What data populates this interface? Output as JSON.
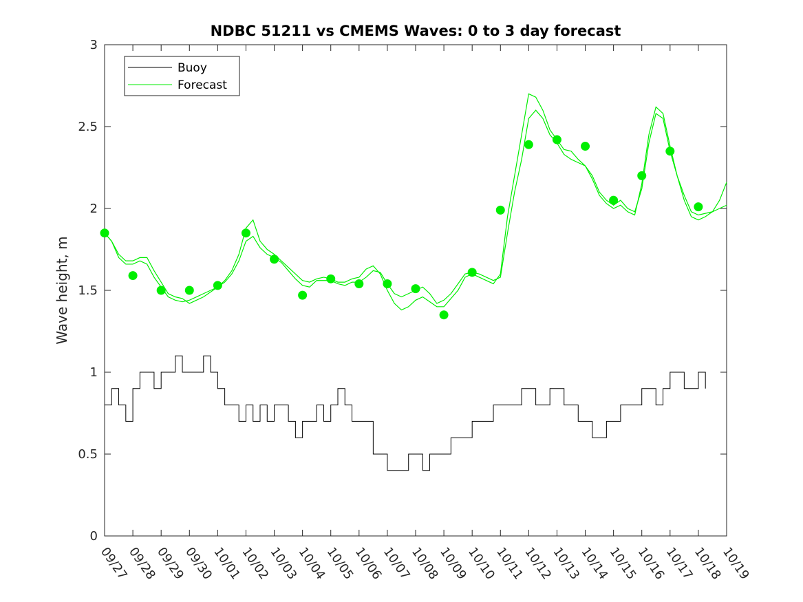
{
  "colors": {
    "buoy": "#000000",
    "forecast": "#00ee00",
    "axes": "#262626"
  },
  "chart_data": {
    "type": "line",
    "title": "NDBC 51211 vs CMEMS Waves: 0 to 3 day forecast",
    "xlabel": "",
    "ylabel": "Wave height, m",
    "xlim": [
      "09/27",
      "10/19"
    ],
    "ylim": [
      0,
      3
    ],
    "yticks": [
      0,
      0.5,
      1,
      1.5,
      2,
      2.5,
      3
    ],
    "ytick_labels": [
      "0",
      "0.5",
      "1",
      "1.5",
      "2",
      "2.5",
      "3"
    ],
    "xticks": [
      "09/27",
      "09/28",
      "09/29",
      "09/30",
      "10/01",
      "10/02",
      "10/03",
      "10/04",
      "10/05",
      "10/06",
      "10/07",
      "10/08",
      "10/09",
      "10/10",
      "10/11",
      "10/12",
      "10/13",
      "10/14",
      "10/15",
      "10/16",
      "10/17",
      "10/18",
      "10/19"
    ],
    "grid": false,
    "legend": {
      "placement": "top-left",
      "entries": [
        "Buoy",
        "Forecast"
      ]
    },
    "series": [
      {
        "name": "Buoy",
        "style": "line",
        "x": [
          "09/27",
          "09/27 06:00",
          "09/27 12:00",
          "09/27 18:00",
          "09/28",
          "09/28 06:00",
          "09/28 12:00",
          "09/28 18:00",
          "09/29",
          "09/29 06:00",
          "09/29 12:00",
          "09/29 18:00",
          "09/30",
          "09/30 06:00",
          "09/30 12:00",
          "09/30 18:00",
          "10/01",
          "10/01 06:00",
          "10/01 12:00",
          "10/01 18:00",
          "10/02",
          "10/02 06:00",
          "10/02 12:00",
          "10/02 18:00",
          "10/03",
          "10/03 06:00",
          "10/03 12:00",
          "10/03 18:00",
          "10/04",
          "10/04 06:00",
          "10/04 12:00",
          "10/04 18:00",
          "10/05",
          "10/05 06:00",
          "10/05 12:00",
          "10/05 18:00",
          "10/06",
          "10/06 06:00",
          "10/06 12:00",
          "10/06 18:00",
          "10/07",
          "10/07 06:00",
          "10/07 12:00",
          "10/07 18:00",
          "10/08",
          "10/08 06:00",
          "10/08 12:00",
          "10/08 18:00",
          "10/09",
          "10/09 06:00",
          "10/09 12:00",
          "10/09 18:00",
          "10/10",
          "10/10 06:00",
          "10/10 12:00",
          "10/10 18:00",
          "10/11",
          "10/11 06:00",
          "10/11 12:00",
          "10/11 18:00",
          "10/12",
          "10/12 06:00",
          "10/12 12:00",
          "10/12 18:00",
          "10/13",
          "10/13 06:00",
          "10/13 12:00",
          "10/13 18:00",
          "10/14",
          "10/14 06:00",
          "10/14 12:00",
          "10/14 18:00",
          "10/15",
          "10/15 06:00",
          "10/15 12:00",
          "10/15 18:00",
          "10/16",
          "10/16 06:00",
          "10/16 12:00",
          "10/16 18:00",
          "10/17",
          "10/17 06:00",
          "10/17 12:00",
          "10/17 18:00",
          "10/18",
          "10/18 06:00"
        ],
        "y": [
          0.8,
          0.9,
          0.8,
          0.7,
          0.9,
          1.0,
          1.0,
          0.9,
          1.0,
          1.0,
          1.1,
          1.0,
          1.0,
          1.0,
          1.1,
          1.0,
          0.9,
          0.8,
          0.8,
          0.7,
          0.8,
          0.7,
          0.8,
          0.7,
          0.8,
          0.8,
          0.7,
          0.6,
          0.7,
          0.7,
          0.8,
          0.7,
          0.8,
          0.9,
          0.8,
          0.7,
          0.7,
          0.7,
          0.5,
          0.5,
          0.4,
          0.4,
          0.4,
          0.5,
          0.5,
          0.4,
          0.5,
          0.5,
          0.5,
          0.6,
          0.6,
          0.6,
          0.7,
          0.7,
          0.7,
          0.8,
          0.8,
          0.8,
          0.8,
          0.9,
          0.9,
          0.8,
          0.8,
          0.9,
          0.9,
          0.8,
          0.8,
          0.7,
          0.7,
          0.6,
          0.6,
          0.7,
          0.7,
          0.8,
          0.8,
          0.8,
          0.9,
          0.9,
          0.8,
          0.9,
          1.0,
          1.0,
          0.9,
          0.9,
          1.0,
          0.9
        ]
      },
      {
        "name": "Forecast",
        "style": "lines",
        "x": [
          "09/27",
          "09/27 06:00",
          "09/27 12:00",
          "09/27 18:00",
          "09/28",
          "09/28 06:00",
          "09/28 12:00",
          "09/28 18:00",
          "09/29",
          "09/29 06:00",
          "09/29 12:00",
          "09/29 18:00",
          "09/30",
          "09/30 06:00",
          "09/30 12:00",
          "09/30 18:00",
          "10/01",
          "10/01 06:00",
          "10/01 12:00",
          "10/01 18:00",
          "10/02",
          "10/02 06:00",
          "10/02 12:00",
          "10/02 18:00",
          "10/03",
          "10/03 06:00",
          "10/03 12:00",
          "10/03 18:00",
          "10/04",
          "10/04 06:00",
          "10/04 12:00",
          "10/04 18:00",
          "10/05",
          "10/05 06:00",
          "10/05 12:00",
          "10/05 18:00",
          "10/06",
          "10/06 06:00",
          "10/06 12:00",
          "10/06 18:00",
          "10/07",
          "10/07 06:00",
          "10/07 12:00",
          "10/07 18:00",
          "10/08",
          "10/08 06:00",
          "10/08 12:00",
          "10/08 18:00",
          "10/09",
          "10/09 06:00",
          "10/09 12:00",
          "10/09 18:00",
          "10/10",
          "10/10 06:00",
          "10/10 12:00",
          "10/10 18:00",
          "10/11",
          "10/11 06:00",
          "10/11 12:00",
          "10/11 18:00",
          "10/12",
          "10/12 06:00",
          "10/12 12:00",
          "10/12 18:00",
          "10/13",
          "10/13 06:00",
          "10/13 12:00",
          "10/13 18:00",
          "10/14",
          "10/14 06:00",
          "10/14 12:00",
          "10/14 18:00",
          "10/15",
          "10/15 06:00",
          "10/15 12:00",
          "10/15 18:00",
          "10/16",
          "10/16 06:00",
          "10/16 12:00",
          "10/16 18:00",
          "10/17",
          "10/17 06:00",
          "10/17 12:00",
          "10/17 18:00",
          "10/18",
          "10/18 06:00",
          "10/18 12:00",
          "10/18 18:00",
          "10/19"
        ],
        "runs": [
          [
            1.85,
            1.8,
            1.7,
            1.66,
            1.66,
            1.68,
            1.66,
            1.58,
            1.52,
            1.46,
            1.44,
            1.43,
            1.44,
            1.46,
            1.48,
            1.5,
            1.52,
            1.55,
            1.6,
            1.68,
            1.8,
            1.83,
            1.76,
            1.72,
            1.7,
            1.67,
            1.62,
            1.57,
            1.53,
            1.52,
            1.56,
            1.56,
            1.56,
            1.54,
            1.53,
            1.55,
            1.55,
            1.58,
            1.62,
            1.61,
            1.54,
            1.48,
            1.46,
            1.48,
            1.5,
            1.52,
            1.48,
            1.42,
            1.44,
            1.48,
            1.54,
            1.6,
            1.61,
            1.6,
            1.58,
            1.56,
            1.58,
            1.85,
            2.1,
            2.3,
            2.55,
            2.6,
            2.55,
            2.45,
            2.4,
            2.33,
            2.3,
            2.28,
            2.26,
            2.2,
            2.1,
            2.05,
            2.02,
            2.05,
            2.0,
            1.98,
            2.12,
            2.4,
            2.58,
            2.55,
            2.35,
            2.2,
            2.08,
            1.98,
            1.96,
            1.97,
            1.98,
            2.0,
            2.02
          ],
          [
            1.85,
            1.8,
            1.72,
            1.68,
            1.68,
            1.7,
            1.7,
            1.62,
            1.55,
            1.48,
            1.46,
            1.45,
            1.42,
            1.44,
            1.46,
            1.49,
            1.52,
            1.56,
            1.62,
            1.72,
            1.88,
            1.93,
            1.8,
            1.75,
            1.72,
            1.68,
            1.64,
            1.6,
            1.56,
            1.55,
            1.57,
            1.58,
            1.57,
            1.55,
            1.55,
            1.57,
            1.58,
            1.63,
            1.65,
            1.6,
            1.5,
            1.42,
            1.38,
            1.4,
            1.44,
            1.46,
            1.43,
            1.4,
            1.4,
            1.45,
            1.5,
            1.58,
            1.6,
            1.58,
            1.56,
            1.54,
            1.6,
            1.95,
            2.2,
            2.45,
            2.7,
            2.68,
            2.6,
            2.48,
            2.42,
            2.36,
            2.35,
            2.3,
            2.26,
            2.18,
            2.08,
            2.03,
            2.0,
            2.02,
            1.98,
            1.96,
            2.15,
            2.45,
            2.62,
            2.58,
            2.38,
            2.2,
            2.05,
            1.95,
            1.93,
            1.95,
            1.98,
            2.05,
            2.16
          ]
        ],
        "markers": {
          "x": [
            "09/27",
            "09/28",
            "09/29",
            "09/30",
            "10/01",
            "10/02",
            "10/03",
            "10/04",
            "10/05",
            "10/06",
            "10/07",
            "10/08",
            "10/09",
            "10/10",
            "10/11",
            "10/12",
            "10/13",
            "10/14",
            "10/15",
            "10/16",
            "10/17",
            "10/18"
          ],
          "y": [
            1.85,
            1.59,
            1.5,
            1.5,
            1.53,
            1.85,
            1.69,
            1.47,
            1.57,
            1.54,
            1.54,
            1.51,
            1.35,
            1.61,
            1.99,
            2.39,
            2.42,
            2.38,
            2.05,
            2.2,
            2.35,
            2.01
          ]
        }
      }
    ]
  }
}
